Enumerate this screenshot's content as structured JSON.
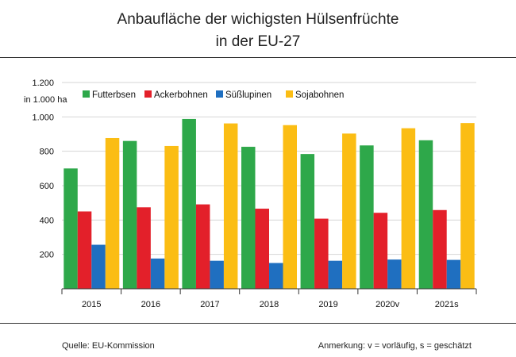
{
  "title_line1": "Anbaufläche der wichigsten Hülsenfrüchte",
  "title_line2": "in der EU-27",
  "footer": {
    "source": "Quelle: EU-Kommission",
    "note": "Anmerkung: v = vorläufig, s = geschätzt"
  },
  "chart_data": {
    "type": "bar",
    "ylabel": "in 1.000 ha",
    "ylim": [
      0,
      1200
    ],
    "yticks": [
      200,
      400,
      600,
      800,
      1000,
      1200
    ],
    "ytick_labels": [
      "200",
      "400",
      "600",
      "800",
      "1.000",
      "1.200"
    ],
    "categories": [
      "2015",
      "2016",
      "2017",
      "2018",
      "2019",
      "2020v",
      "2021s"
    ],
    "legend_position": "top",
    "grid": true,
    "series": [
      {
        "name": "Futterbsen",
        "color": "#2ea84a",
        "values": [
          700,
          860,
          988,
          826,
          784,
          834,
          864
        ]
      },
      {
        "name": "Ackerbohnen",
        "color": "#e3202a",
        "values": [
          450,
          474,
          491,
          466,
          408,
          442,
          458
        ]
      },
      {
        "name": "Süßlupinen",
        "color": "#1f6fc0",
        "values": [
          256,
          176,
          163,
          150,
          163,
          170,
          168
        ]
      },
      {
        "name": "Sojabohnen",
        "color": "#fbbd14",
        "values": [
          877,
          831,
          962,
          952,
          903,
          934,
          964
        ]
      }
    ]
  }
}
